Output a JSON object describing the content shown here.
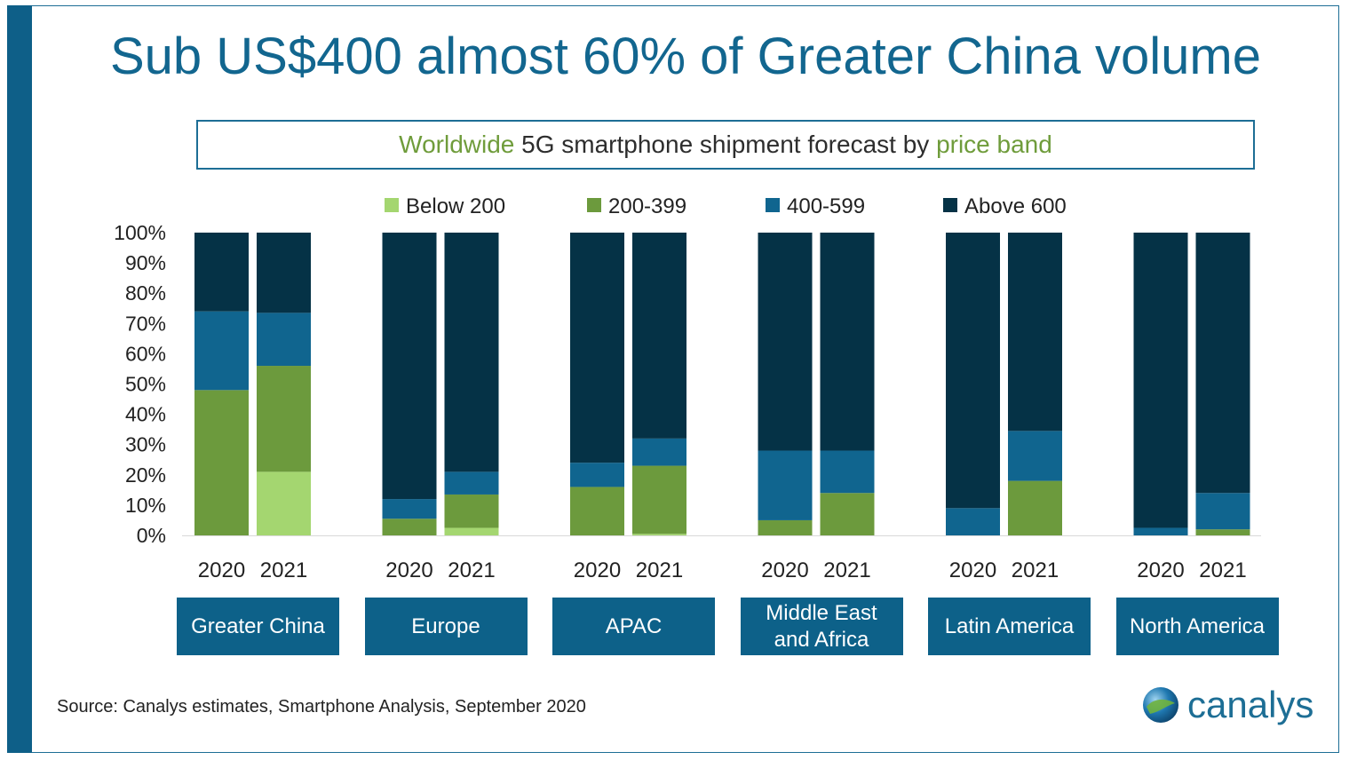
{
  "title": "Sub US$400 almost 60% of Greater China volume",
  "subtitle": {
    "part1": "Worldwide",
    "part2": " 5G smartphone shipment forecast by ",
    "part3": "price band"
  },
  "source": "Source: Canalys estimates, Smartphone Analysis, September 2020",
  "logo_text": "canalys",
  "colors": {
    "frame": "#1d6e95",
    "left_bar": "#0e5f88",
    "title": "#12668f",
    "region_box": "#0d6189",
    "below_200": "#a4d670",
    "200_399": "#6c9a3d",
    "400_599": "#10658f",
    "above_600": "#053246"
  },
  "chart_data": {
    "type": "bar",
    "stacked": true,
    "ylim": [
      0,
      100
    ],
    "yticks": [
      "0%",
      "10%",
      "20%",
      "30%",
      "40%",
      "50%",
      "60%",
      "70%",
      "80%",
      "90%",
      "100%"
    ],
    "legend_position": "top",
    "groups": [
      "Greater China",
      "Europe",
      "APAC",
      "Middle East\nand Africa",
      "Latin America",
      "North America"
    ],
    "years": [
      "2020",
      "2021"
    ],
    "series": [
      {
        "name": "Below 200",
        "color": "#a4d670",
        "values": [
          [
            0,
            21
          ],
          [
            0,
            2.5
          ],
          [
            0,
            0.5
          ],
          [
            0,
            0
          ],
          [
            0,
            0
          ],
          [
            0,
            0
          ]
        ]
      },
      {
        "name": "200-399",
        "color": "#6c9a3d",
        "values": [
          [
            48,
            35
          ],
          [
            5.5,
            11
          ],
          [
            16,
            22.5
          ],
          [
            5,
            14
          ],
          [
            0,
            18
          ],
          [
            0,
            2
          ]
        ]
      },
      {
        "name": "400-599",
        "color": "#10658f",
        "values": [
          [
            26,
            17.5
          ],
          [
            6.5,
            7.5
          ],
          [
            8,
            9
          ],
          [
            23,
            14
          ],
          [
            9,
            16.5
          ],
          [
            2.5,
            12
          ]
        ]
      },
      {
        "name": "Above 600",
        "color": "#053246",
        "values": [
          [
            26,
            26.5
          ],
          [
            88,
            79
          ],
          [
            76,
            68
          ],
          [
            72,
            72
          ],
          [
            91,
            65.5
          ],
          [
            97.5,
            86
          ]
        ]
      }
    ]
  }
}
